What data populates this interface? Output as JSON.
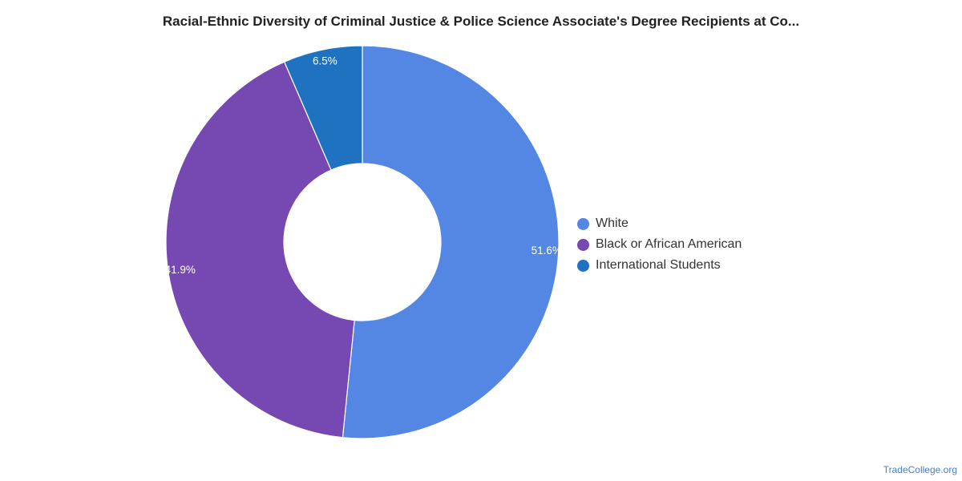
{
  "chart_data": {
    "type": "pie",
    "donut": true,
    "title": "Racial-Ethnic Diversity of Criminal Justice & Police Science Associate's Degree Recipients at Co...",
    "legend_position": "right",
    "slices": [
      {
        "label": "White",
        "value": 51.6,
        "display": "51.6%",
        "color": "#5486e3"
      },
      {
        "label": "Black or African American",
        "value": 41.9,
        "display": "41.9%",
        "color": "#7549b1"
      },
      {
        "label": "International Students",
        "value": 6.5,
        "display": "6.5%",
        "color": "#1f72bf"
      }
    ]
  },
  "watermark": "TradeCollege.org"
}
